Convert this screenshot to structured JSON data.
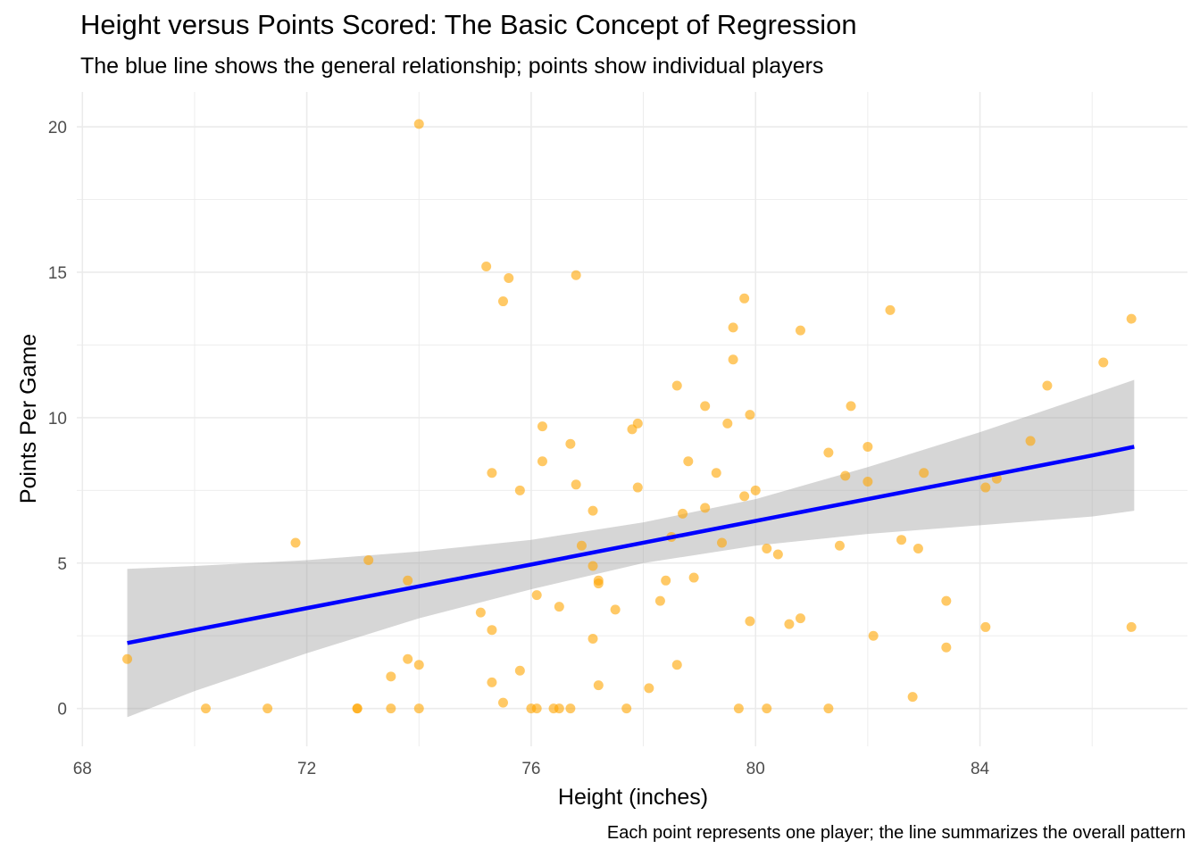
{
  "chart_data": {
    "type": "scatter",
    "title": "Height versus Points Scored: The Basic Concept of Regression",
    "subtitle": "The blue line shows the general relationship; points show individual players",
    "caption": "Each point represents one player; the line summarizes the overall pattern",
    "xlabel": "Height (inches)",
    "ylabel": "Points Per Game",
    "xlim": [
      67.9,
      87.7
    ],
    "ylim": [
      -1.3,
      21.2
    ],
    "xticks": [
      68,
      72,
      76,
      80,
      84
    ],
    "yticks": [
      0,
      5,
      10,
      15,
      20
    ],
    "grid": true,
    "colors": {
      "points": "#FFA500",
      "line": "#0000FF",
      "band": "#999999",
      "grid": "#EBEBEB"
    },
    "points": [
      [
        68.8,
        1.7
      ],
      [
        70.2,
        0
      ],
      [
        71.3,
        0
      ],
      [
        71.8,
        5.7
      ],
      [
        72.9,
        0
      ],
      [
        72.9,
        0
      ],
      [
        73.1,
        5.1
      ],
      [
        73.5,
        0
      ],
      [
        73.5,
        1.1
      ],
      [
        73.8,
        4.4
      ],
      [
        73.8,
        1.7
      ],
      [
        74.0,
        1.5
      ],
      [
        74.0,
        0
      ],
      [
        74.0,
        20.1
      ],
      [
        75.1,
        3.3
      ],
      [
        75.2,
        15.2
      ],
      [
        75.3,
        8.1
      ],
      [
        75.3,
        2.7
      ],
      [
        75.3,
        0.9
      ],
      [
        75.5,
        14.0
      ],
      [
        75.5,
        0.2
      ],
      [
        75.6,
        14.8
      ],
      [
        75.8,
        7.5
      ],
      [
        75.8,
        1.3
      ],
      [
        76.0,
        0
      ],
      [
        76.1,
        3.9
      ],
      [
        76.1,
        0
      ],
      [
        76.2,
        8.5
      ],
      [
        76.2,
        9.7
      ],
      [
        76.4,
        0
      ],
      [
        76.5,
        0
      ],
      [
        76.5,
        3.5
      ],
      [
        76.7,
        0
      ],
      [
        76.7,
        9.1
      ],
      [
        76.8,
        14.9
      ],
      [
        76.8,
        7.7
      ],
      [
        76.9,
        5.6
      ],
      [
        77.1,
        6.8
      ],
      [
        77.1,
        2.4
      ],
      [
        77.1,
        4.9
      ],
      [
        77.2,
        4.4
      ],
      [
        77.2,
        4.3
      ],
      [
        77.2,
        0.8
      ],
      [
        77.5,
        3.4
      ],
      [
        77.7,
        0
      ],
      [
        77.8,
        9.6
      ],
      [
        77.9,
        7.6
      ],
      [
        77.9,
        9.8
      ],
      [
        78.1,
        0.7
      ],
      [
        78.3,
        3.7
      ],
      [
        78.4,
        4.4
      ],
      [
        78.5,
        5.9
      ],
      [
        78.6,
        11.1
      ],
      [
        78.6,
        1.5
      ],
      [
        78.7,
        6.7
      ],
      [
        78.8,
        8.5
      ],
      [
        78.9,
        4.5
      ],
      [
        79.1,
        6.9
      ],
      [
        79.1,
        10.4
      ],
      [
        79.3,
        8.1
      ],
      [
        79.4,
        5.7
      ],
      [
        79.5,
        9.8
      ],
      [
        79.6,
        12.0
      ],
      [
        79.6,
        13.1
      ],
      [
        79.7,
        0
      ],
      [
        79.8,
        14.1
      ],
      [
        79.8,
        7.3
      ],
      [
        79.9,
        10.1
      ],
      [
        79.9,
        3.0
      ],
      [
        80.0,
        7.5
      ],
      [
        80.2,
        5.5
      ],
      [
        80.2,
        0
      ],
      [
        80.4,
        5.3
      ],
      [
        80.6,
        2.9
      ],
      [
        80.8,
        13.0
      ],
      [
        80.8,
        3.1
      ],
      [
        81.3,
        0
      ],
      [
        81.3,
        8.8
      ],
      [
        81.5,
        5.6
      ],
      [
        81.6,
        8.0
      ],
      [
        81.7,
        10.4
      ],
      [
        82.0,
        9.0
      ],
      [
        82.0,
        7.8
      ],
      [
        82.1,
        2.5
      ],
      [
        82.4,
        13.7
      ],
      [
        82.6,
        5.8
      ],
      [
        82.8,
        0.4
      ],
      [
        82.9,
        5.5
      ],
      [
        83.0,
        8.1
      ],
      [
        83.4,
        3.7
      ],
      [
        83.4,
        2.1
      ],
      [
        84.1,
        7.6
      ],
      [
        84.1,
        2.8
      ],
      [
        84.3,
        7.9
      ],
      [
        84.9,
        9.2
      ],
      [
        85.2,
        11.1
      ],
      [
        86.2,
        11.9
      ],
      [
        86.7,
        2.8
      ],
      [
        86.7,
        13.4
      ]
    ],
    "fit": {
      "x": [
        68.8,
        70,
        72,
        74,
        76,
        78,
        80,
        82,
        84,
        86,
        86.75
      ],
      "y": [
        2.25,
        2.7,
        3.45,
        4.2,
        4.95,
        5.7,
        6.45,
        7.2,
        7.95,
        8.7,
        9.0
      ],
      "lower": [
        -0.3,
        0.6,
        1.9,
        3.1,
        4.1,
        5.0,
        5.6,
        6.0,
        6.3,
        6.6,
        6.8
      ],
      "upper": [
        4.8,
        4.9,
        5.1,
        5.4,
        5.8,
        6.4,
        7.2,
        8.3,
        9.5,
        10.8,
        11.3
      ]
    }
  }
}
